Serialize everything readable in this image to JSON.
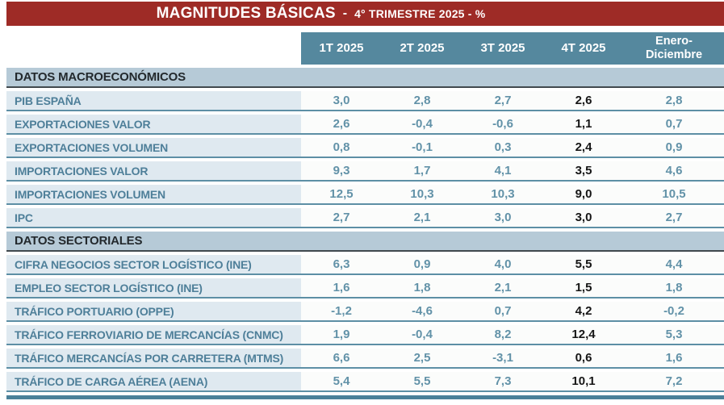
{
  "title": {
    "main": "MAGNITUDES BÁSICAS",
    "separator": "-",
    "subtitle": "4° TRIMESTRE 2025 - %"
  },
  "chart_data": {
    "type": "table",
    "title": "MAGNITUDES BÁSICAS - 4° TRIMESTRE 2025 - %",
    "units": "%",
    "highlighted_column": "4T 2025",
    "columns": [
      "1T 2025",
      "2T 2025",
      "3T 2025",
      "4T 2025",
      "Enero-\nDiciembre"
    ],
    "sections": [
      {
        "label": "DATOS MACROECONÓMICOS",
        "rows": [
          {
            "label": "PIB ESPAÑA",
            "values": [
              "3,0",
              "2,8",
              "2,7",
              "2,6",
              "2,8"
            ]
          },
          {
            "label": "EXPORTACIONES VALOR",
            "values": [
              "2,6",
              "-0,4",
              "-0,6",
              "1,1",
              "0,7"
            ]
          },
          {
            "label": "EXPORTACIONES VOLUMEN",
            "values": [
              "0,8",
              "-0,1",
              "0,3",
              "2,4",
              "0,9"
            ]
          },
          {
            "label": "IMPORTACIONES VALOR",
            "values": [
              "9,3",
              "1,7",
              "4,1",
              "3,5",
              "4,6"
            ]
          },
          {
            "label": "IMPORTACIONES VOLUMEN",
            "values": [
              "12,5",
              "10,3",
              "10,3",
              "9,0",
              "10,5"
            ]
          },
          {
            "label": "IPC",
            "values": [
              "2,7",
              "2,1",
              "3,0",
              "3,0",
              "2,7"
            ]
          }
        ]
      },
      {
        "label": "DATOS SECTORIALES",
        "rows": [
          {
            "label": "CIFRA NEGOCIOS SECTOR LOGÍSTICO (INE)",
            "values": [
              "6,3",
              "0,9",
              "4,0",
              "5,5",
              "4,4"
            ]
          },
          {
            "label": "EMPLEO SECTOR LOGÍSTICO (INE)",
            "values": [
              "1,6",
              "1,8",
              "2,1",
              "1,5",
              "1,8"
            ]
          },
          {
            "label": "TRÁFICO PORTUARIO (OPPE)",
            "values": [
              "-1,2",
              "-4,6",
              "0,7",
              "4,2",
              "-0,2"
            ]
          },
          {
            "label": "TRÁFICO FERROVIARIO DE MERCANCÍAS (CNMC)",
            "values": [
              "1,9",
              "-0,4",
              "8,2",
              "12,4",
              "5,3"
            ]
          },
          {
            "label": "TRÁFICO MERCANCÍAS POR CARRETERA (MTMS)",
            "values": [
              "6,6",
              "2,5",
              "-3,1",
              "0,6",
              "1,6"
            ]
          },
          {
            "label": "TRÁFICO DE CARGA AÉREA (AENA)",
            "values": [
              "5,4",
              "5,5",
              "7,3",
              "10,1",
              "7,2"
            ]
          }
        ]
      }
    ]
  },
  "colors": {
    "banner_red": "#9e2b26",
    "header_teal": "#55889e",
    "section_bg": "#b6cad7",
    "section_text": "#23292d",
    "row_label_bg": "#dfe9f0",
    "label_text": "#4e7f99",
    "value_text": "#6292a8",
    "highlight_text": "#161616",
    "row_border": "#5d8fa5",
    "section_border": "#41494e",
    "bottom_bar": "#4a8099"
  }
}
